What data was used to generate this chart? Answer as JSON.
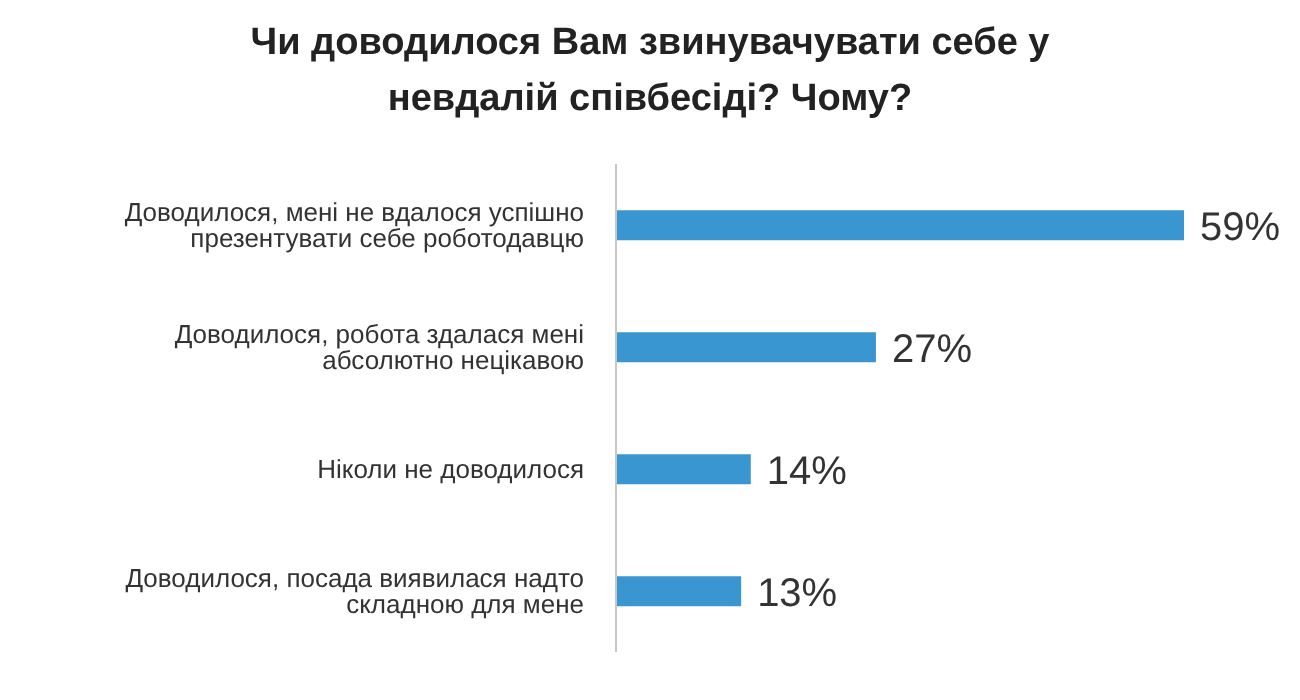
{
  "chart_data": {
    "type": "bar",
    "orientation": "horizontal",
    "title": "Чи доводилося Вам звинувачувати себе у невдалій співбесіді? Чому?",
    "categories": [
      "Доводилося, мені не вдалося успішно презентувати себе роботодавцю",
      "Доводилося, робота здалася мені абсолютно нецікавою",
      "Ніколи не доводилося",
      "Доводилося, посада виявилася надто складною для мене"
    ],
    "values": [
      59,
      27,
      14,
      13
    ],
    "value_labels": [
      "59%",
      "27%",
      "14%",
      "13%"
    ],
    "color": "#3a96d0"
  }
}
